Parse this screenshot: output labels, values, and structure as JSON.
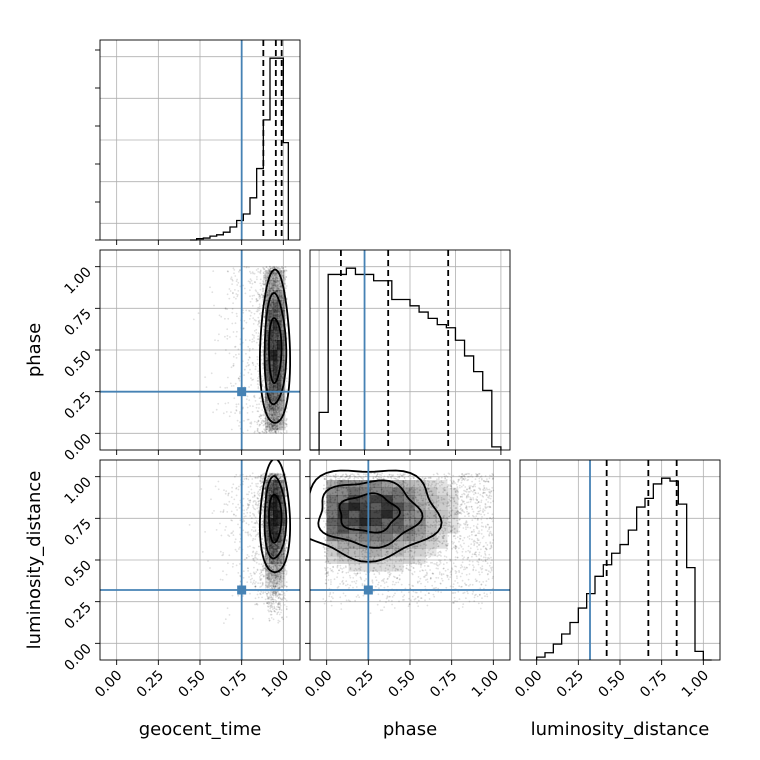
{
  "colors": {
    "truth": "#4682b4",
    "hist": "#000000",
    "grid": "#b0b0b0",
    "samples": "#000000"
  },
  "chart_data": {
    "type": "corner",
    "parameters": [
      "geocent_time",
      "phase",
      "luminosity_distance"
    ],
    "truths": {
      "geocent_time": 0.75,
      "phase": 0.25,
      "luminosity_distance": 0.32
    },
    "ticks": [
      "0.00",
      "0.25",
      "0.50",
      "0.75",
      "1.00"
    ],
    "axis_labels": {
      "x": [
        "geocent_time",
        "phase",
        "luminosity_distance"
      ],
      "y": [
        "phase",
        "luminosity_distance"
      ]
    },
    "hist_1d": [
      {
        "param": "geocent_time",
        "range": [
          -0.1,
          1.1
        ],
        "edges": [
          0.44,
          0.48,
          0.52,
          0.56,
          0.6,
          0.64,
          0.68,
          0.72,
          0.76,
          0.8,
          0.84,
          0.88,
          0.92,
          0.96,
          1.0,
          1.03
        ],
        "counts": [
          0,
          2,
          3,
          6,
          8,
          12,
          20,
          30,
          40,
          65,
          110,
          185,
          280,
          280,
          150
        ],
        "quantiles": [
          0.88,
          0.955,
          0.99
        ]
      },
      {
        "param": "phase",
        "range": [
          -0.05,
          1.05
        ],
        "edges": [
          -0.05,
          0.0,
          0.05,
          0.1,
          0.15,
          0.2,
          0.25,
          0.3,
          0.35,
          0.4,
          0.45,
          0.5,
          0.55,
          0.6,
          0.65,
          0.7,
          0.75,
          0.8,
          0.85,
          0.9,
          0.95,
          1.0
        ],
        "counts": [
          0,
          1.2,
          5.6,
          5.6,
          5.8,
          5.6,
          5.6,
          5.4,
          5.4,
          4.8,
          4.8,
          4.6,
          4.4,
          4.2,
          4.0,
          3.9,
          3.5,
          3.0,
          2.5,
          1.9,
          0.1
        ],
        "quantiles": [
          0.12,
          0.38,
          0.71
        ]
      },
      {
        "param": "luminosity_distance",
        "range": [
          -0.1,
          1.1
        ],
        "edges": [
          0.0,
          0.05,
          0.1,
          0.15,
          0.2,
          0.25,
          0.3,
          0.35,
          0.4,
          0.45,
          0.5,
          0.55,
          0.6,
          0.65,
          0.7,
          0.75,
          0.8,
          0.85,
          0.9,
          0.95,
          1.0,
          1.05
        ],
        "counts": [
          0.1,
          0.25,
          0.55,
          0.9,
          1.3,
          1.8,
          2.3,
          2.9,
          3.3,
          3.7,
          4.0,
          4.5,
          5.3,
          5.6,
          6.1,
          6.3,
          6.2,
          5.4,
          3.2,
          0.3,
          0
        ],
        "quantiles": [
          0.42,
          0.67,
          0.84
        ]
      }
    ],
    "hist_2d": [
      {
        "x": "geocent_time",
        "y": "phase",
        "scatter_x_range": [
          0.42,
          1.02
        ],
        "scatter_y_range": [
          0.0,
          1.0
        ],
        "mode_x": 0.95,
        "mode_y": 0.5,
        "width_x": 0.09,
        "width_y": 0.46
      },
      {
        "x": "geocent_time",
        "y": "luminosity_distance",
        "scatter_x_range": [
          0.42,
          1.02
        ],
        "scatter_y_range": [
          0.12,
          1.02
        ],
        "mode_x": 0.95,
        "mode_y": 0.75,
        "width_x": 0.09,
        "width_y": 0.34
      },
      {
        "x": "phase",
        "y": "luminosity_distance",
        "scatter_x_range": [
          -0.02,
          1.0
        ],
        "scatter_y_range": [
          0.18,
          1.02
        ],
        "mode_x": 0.25,
        "mode_y": 0.78,
        "width_x": 0.42,
        "width_y": 0.27
      }
    ]
  }
}
